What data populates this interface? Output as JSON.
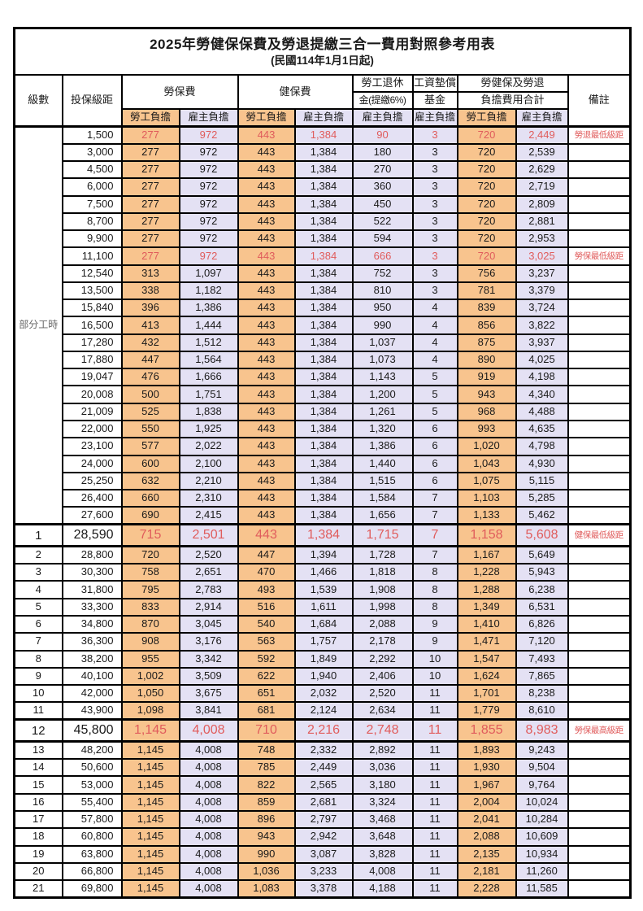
{
  "title": "2025年勞健保保費及勞退提繳三合一費用對照參考用表",
  "subtitle": "(民國114年1月1日起)",
  "colors": {
    "employee_col_bg": "#F8C48E",
    "employer_col_bg": "#E4E1F4",
    "highlight_text": "#E05C5C",
    "grid": "#000000"
  },
  "table": {
    "header": {
      "level": "級數",
      "bracket": "投保級距",
      "labor": "勞保費",
      "health": "健保費",
      "pension_l1": "勞工退休",
      "pension_l2": "金(提繳6%)",
      "fund_l1": "工資墊償",
      "fund_l2": "基金",
      "total_l1": "勞健保及勞退",
      "total_l2": "負擔費用合計",
      "emp": "勞工負擔",
      "er": "雇主負擔",
      "note": "備註"
    },
    "part_time_label": "部分工時",
    "part_time_rowspan": 23,
    "rows": [
      {
        "level": "",
        "bracket": "1,500",
        "labor_emp": "277",
        "labor_er": "972",
        "health_emp": "443",
        "health_er": "1,384",
        "pension_er": "90",
        "fund_er": "3",
        "total_emp": "720",
        "total_er": "2,449",
        "note": "勞退最低級距",
        "red": true,
        "large": false
      },
      {
        "level": "",
        "bracket": "3,000",
        "labor_emp": "277",
        "labor_er": "972",
        "health_emp": "443",
        "health_er": "1,384",
        "pension_er": "180",
        "fund_er": "3",
        "total_emp": "720",
        "total_er": "2,539",
        "note": "",
        "red": false,
        "large": false
      },
      {
        "level": "",
        "bracket": "4,500",
        "labor_emp": "277",
        "labor_er": "972",
        "health_emp": "443",
        "health_er": "1,384",
        "pension_er": "270",
        "fund_er": "3",
        "total_emp": "720",
        "total_er": "2,629",
        "note": "",
        "red": false,
        "large": false
      },
      {
        "level": "",
        "bracket": "6,000",
        "labor_emp": "277",
        "labor_er": "972",
        "health_emp": "443",
        "health_er": "1,384",
        "pension_er": "360",
        "fund_er": "3",
        "total_emp": "720",
        "total_er": "2,719",
        "note": "",
        "red": false,
        "large": false
      },
      {
        "level": "",
        "bracket": "7,500",
        "labor_emp": "277",
        "labor_er": "972",
        "health_emp": "443",
        "health_er": "1,384",
        "pension_er": "450",
        "fund_er": "3",
        "total_emp": "720",
        "total_er": "2,809",
        "note": "",
        "red": false,
        "large": false
      },
      {
        "level": "",
        "bracket": "8,700",
        "labor_emp": "277",
        "labor_er": "972",
        "health_emp": "443",
        "health_er": "1,384",
        "pension_er": "522",
        "fund_er": "3",
        "total_emp": "720",
        "total_er": "2,881",
        "note": "",
        "red": false,
        "large": false
      },
      {
        "level": "",
        "bracket": "9,900",
        "labor_emp": "277",
        "labor_er": "972",
        "health_emp": "443",
        "health_er": "1,384",
        "pension_er": "594",
        "fund_er": "3",
        "total_emp": "720",
        "total_er": "2,953",
        "note": "",
        "red": false,
        "large": false
      },
      {
        "level": "",
        "bracket": "11,100",
        "labor_emp": "277",
        "labor_er": "972",
        "health_emp": "443",
        "health_er": "1,384",
        "pension_er": "666",
        "fund_er": "3",
        "total_emp": "720",
        "total_er": "3,025",
        "note": "勞保最低級距",
        "red": true,
        "large": false
      },
      {
        "level": "",
        "bracket": "12,540",
        "labor_emp": "313",
        "labor_er": "1,097",
        "health_emp": "443",
        "health_er": "1,384",
        "pension_er": "752",
        "fund_er": "3",
        "total_emp": "756",
        "total_er": "3,237",
        "note": "",
        "red": false,
        "large": false
      },
      {
        "level": "",
        "bracket": "13,500",
        "labor_emp": "338",
        "labor_er": "1,182",
        "health_emp": "443",
        "health_er": "1,384",
        "pension_er": "810",
        "fund_er": "3",
        "total_emp": "781",
        "total_er": "3,379",
        "note": "",
        "red": false,
        "large": false
      },
      {
        "level": "",
        "bracket": "15,840",
        "labor_emp": "396",
        "labor_er": "1,386",
        "health_emp": "443",
        "health_er": "1,384",
        "pension_er": "950",
        "fund_er": "4",
        "total_emp": "839",
        "total_er": "3,724",
        "note": "",
        "red": false,
        "large": false
      },
      {
        "level": "",
        "bracket": "16,500",
        "labor_emp": "413",
        "labor_er": "1,444",
        "health_emp": "443",
        "health_er": "1,384",
        "pension_er": "990",
        "fund_er": "4",
        "total_emp": "856",
        "total_er": "3,822",
        "note": "",
        "red": false,
        "large": false
      },
      {
        "level": "",
        "bracket": "17,280",
        "labor_emp": "432",
        "labor_er": "1,512",
        "health_emp": "443",
        "health_er": "1,384",
        "pension_er": "1,037",
        "fund_er": "4",
        "total_emp": "875",
        "total_er": "3,937",
        "note": "",
        "red": false,
        "large": false
      },
      {
        "level": "",
        "bracket": "17,880",
        "labor_emp": "447",
        "labor_er": "1,564",
        "health_emp": "443",
        "health_er": "1,384",
        "pension_er": "1,073",
        "fund_er": "4",
        "total_emp": "890",
        "total_er": "4,025",
        "note": "",
        "red": false,
        "large": false
      },
      {
        "level": "",
        "bracket": "19,047",
        "labor_emp": "476",
        "labor_er": "1,666",
        "health_emp": "443",
        "health_er": "1,384",
        "pension_er": "1,143",
        "fund_er": "5",
        "total_emp": "919",
        "total_er": "4,198",
        "note": "",
        "red": false,
        "large": false
      },
      {
        "level": "",
        "bracket": "20,008",
        "labor_emp": "500",
        "labor_er": "1,751",
        "health_emp": "443",
        "health_er": "1,384",
        "pension_er": "1,200",
        "fund_er": "5",
        "total_emp": "943",
        "total_er": "4,340",
        "note": "",
        "red": false,
        "large": false
      },
      {
        "level": "",
        "bracket": "21,009",
        "labor_emp": "525",
        "labor_er": "1,838",
        "health_emp": "443",
        "health_er": "1,384",
        "pension_er": "1,261",
        "fund_er": "5",
        "total_emp": "968",
        "total_er": "4,488",
        "note": "",
        "red": false,
        "large": false
      },
      {
        "level": "",
        "bracket": "22,000",
        "labor_emp": "550",
        "labor_er": "1,925",
        "health_emp": "443",
        "health_er": "1,384",
        "pension_er": "1,320",
        "fund_er": "6",
        "total_emp": "993",
        "total_er": "4,635",
        "note": "",
        "red": false,
        "large": false
      },
      {
        "level": "",
        "bracket": "23,100",
        "labor_emp": "577",
        "labor_er": "2,022",
        "health_emp": "443",
        "health_er": "1,384",
        "pension_er": "1,386",
        "fund_er": "6",
        "total_emp": "1,020",
        "total_er": "4,798",
        "note": "",
        "red": false,
        "large": false
      },
      {
        "level": "",
        "bracket": "24,000",
        "labor_emp": "600",
        "labor_er": "2,100",
        "health_emp": "443",
        "health_er": "1,384",
        "pension_er": "1,440",
        "fund_er": "6",
        "total_emp": "1,043",
        "total_er": "4,930",
        "note": "",
        "red": false,
        "large": false
      },
      {
        "level": "",
        "bracket": "25,250",
        "labor_emp": "632",
        "labor_er": "2,210",
        "health_emp": "443",
        "health_er": "1,384",
        "pension_er": "1,515",
        "fund_er": "6",
        "total_emp": "1,075",
        "total_er": "5,115",
        "note": "",
        "red": false,
        "large": false
      },
      {
        "level": "",
        "bracket": "26,400",
        "labor_emp": "660",
        "labor_er": "2,310",
        "health_emp": "443",
        "health_er": "1,384",
        "pension_er": "1,584",
        "fund_er": "7",
        "total_emp": "1,103",
        "total_er": "5,285",
        "note": "",
        "red": false,
        "large": false
      },
      {
        "level": "",
        "bracket": "27,600",
        "labor_emp": "690",
        "labor_er": "2,415",
        "health_emp": "443",
        "health_er": "1,384",
        "pension_er": "1,656",
        "fund_er": "7",
        "total_emp": "1,133",
        "total_er": "5,462",
        "note": "",
        "red": false,
        "large": false
      },
      {
        "level": "1",
        "bracket": "28,590",
        "labor_emp": "715",
        "labor_er": "2,501",
        "health_emp": "443",
        "health_er": "1,384",
        "pension_er": "1,715",
        "fund_er": "7",
        "total_emp": "1,158",
        "total_er": "5,608",
        "note": "健保最低級距",
        "red": true,
        "large": true
      },
      {
        "level": "2",
        "bracket": "28,800",
        "labor_emp": "720",
        "labor_er": "2,520",
        "health_emp": "447",
        "health_er": "1,394",
        "pension_er": "1,728",
        "fund_er": "7",
        "total_emp": "1,167",
        "total_er": "5,649",
        "note": "",
        "red": false,
        "large": false
      },
      {
        "level": "3",
        "bracket": "30,300",
        "labor_emp": "758",
        "labor_er": "2,651",
        "health_emp": "470",
        "health_er": "1,466",
        "pension_er": "1,818",
        "fund_er": "8",
        "total_emp": "1,228",
        "total_er": "5,943",
        "note": "",
        "red": false,
        "large": false
      },
      {
        "level": "4",
        "bracket": "31,800",
        "labor_emp": "795",
        "labor_er": "2,783",
        "health_emp": "493",
        "health_er": "1,539",
        "pension_er": "1,908",
        "fund_er": "8",
        "total_emp": "1,288",
        "total_er": "6,238",
        "note": "",
        "red": false,
        "large": false
      },
      {
        "level": "5",
        "bracket": "33,300",
        "labor_emp": "833",
        "labor_er": "2,914",
        "health_emp": "516",
        "health_er": "1,611",
        "pension_er": "1,998",
        "fund_er": "8",
        "total_emp": "1,349",
        "total_er": "6,531",
        "note": "",
        "red": false,
        "large": false
      },
      {
        "level": "6",
        "bracket": "34,800",
        "labor_emp": "870",
        "labor_er": "3,045",
        "health_emp": "540",
        "health_er": "1,684",
        "pension_er": "2,088",
        "fund_er": "9",
        "total_emp": "1,410",
        "total_er": "6,826",
        "note": "",
        "red": false,
        "large": false
      },
      {
        "level": "7",
        "bracket": "36,300",
        "labor_emp": "908",
        "labor_er": "3,176",
        "health_emp": "563",
        "health_er": "1,757",
        "pension_er": "2,178",
        "fund_er": "9",
        "total_emp": "1,471",
        "total_er": "7,120",
        "note": "",
        "red": false,
        "large": false
      },
      {
        "level": "8",
        "bracket": "38,200",
        "labor_emp": "955",
        "labor_er": "3,342",
        "health_emp": "592",
        "health_er": "1,849",
        "pension_er": "2,292",
        "fund_er": "10",
        "total_emp": "1,547",
        "total_er": "7,493",
        "note": "",
        "red": false,
        "large": false
      },
      {
        "level": "9",
        "bracket": "40,100",
        "labor_emp": "1,002",
        "labor_er": "3,509",
        "health_emp": "622",
        "health_er": "1,940",
        "pension_er": "2,406",
        "fund_er": "10",
        "total_emp": "1,624",
        "total_er": "7,865",
        "note": "",
        "red": false,
        "large": false
      },
      {
        "level": "10",
        "bracket": "42,000",
        "labor_emp": "1,050",
        "labor_er": "3,675",
        "health_emp": "651",
        "health_er": "2,032",
        "pension_er": "2,520",
        "fund_er": "11",
        "total_emp": "1,701",
        "total_er": "8,238",
        "note": "",
        "red": false,
        "large": false
      },
      {
        "level": "11",
        "bracket": "43,900",
        "labor_emp": "1,098",
        "labor_er": "3,841",
        "health_emp": "681",
        "health_er": "2,124",
        "pension_er": "2,634",
        "fund_er": "11",
        "total_emp": "1,779",
        "total_er": "8,610",
        "note": "",
        "red": false,
        "large": false
      },
      {
        "level": "12",
        "bracket": "45,800",
        "labor_emp": "1,145",
        "labor_er": "4,008",
        "health_emp": "710",
        "health_er": "2,216",
        "pension_er": "2,748",
        "fund_er": "11",
        "total_emp": "1,855",
        "total_er": "8,983",
        "note": "勞保最高級距",
        "red": true,
        "large": true
      },
      {
        "level": "13",
        "bracket": "48,200",
        "labor_emp": "1,145",
        "labor_er": "4,008",
        "health_emp": "748",
        "health_er": "2,332",
        "pension_er": "2,892",
        "fund_er": "11",
        "total_emp": "1,893",
        "total_er": "9,243",
        "note": "",
        "red": false,
        "large": false
      },
      {
        "level": "14",
        "bracket": "50,600",
        "labor_emp": "1,145",
        "labor_er": "4,008",
        "health_emp": "785",
        "health_er": "2,449",
        "pension_er": "3,036",
        "fund_er": "11",
        "total_emp": "1,930",
        "total_er": "9,504",
        "note": "",
        "red": false,
        "large": false
      },
      {
        "level": "15",
        "bracket": "53,000",
        "labor_emp": "1,145",
        "labor_er": "4,008",
        "health_emp": "822",
        "health_er": "2,565",
        "pension_er": "3,180",
        "fund_er": "11",
        "total_emp": "1,967",
        "total_er": "9,764",
        "note": "",
        "red": false,
        "large": false
      },
      {
        "level": "16",
        "bracket": "55,400",
        "labor_emp": "1,145",
        "labor_er": "4,008",
        "health_emp": "859",
        "health_er": "2,681",
        "pension_er": "3,324",
        "fund_er": "11",
        "total_emp": "2,004",
        "total_er": "10,024",
        "note": "",
        "red": false,
        "large": false
      },
      {
        "level": "17",
        "bracket": "57,800",
        "labor_emp": "1,145",
        "labor_er": "4,008",
        "health_emp": "896",
        "health_er": "2,797",
        "pension_er": "3,468",
        "fund_er": "11",
        "total_emp": "2,041",
        "total_er": "10,284",
        "note": "",
        "red": false,
        "large": false
      },
      {
        "level": "18",
        "bracket": "60,800",
        "labor_emp": "1,145",
        "labor_er": "4,008",
        "health_emp": "943",
        "health_er": "2,942",
        "pension_er": "3,648",
        "fund_er": "11",
        "total_emp": "2,088",
        "total_er": "10,609",
        "note": "",
        "red": false,
        "large": false
      },
      {
        "level": "19",
        "bracket": "63,800",
        "labor_emp": "1,145",
        "labor_er": "4,008",
        "health_emp": "990",
        "health_er": "3,087",
        "pension_er": "3,828",
        "fund_er": "11",
        "total_emp": "2,135",
        "total_er": "10,934",
        "note": "",
        "red": false,
        "large": false
      },
      {
        "level": "20",
        "bracket": "66,800",
        "labor_emp": "1,145",
        "labor_er": "4,008",
        "health_emp": "1,036",
        "health_er": "3,233",
        "pension_er": "4,008",
        "fund_er": "11",
        "total_emp": "2,181",
        "total_er": "11,260",
        "note": "",
        "red": false,
        "large": false
      },
      {
        "level": "21",
        "bracket": "69,800",
        "labor_emp": "1,145",
        "labor_er": "4,008",
        "health_emp": "1,083",
        "health_er": "3,378",
        "pension_er": "4,188",
        "fund_er": "11",
        "total_emp": "2,228",
        "total_er": "11,585",
        "note": "",
        "red": false,
        "large": false
      }
    ]
  }
}
